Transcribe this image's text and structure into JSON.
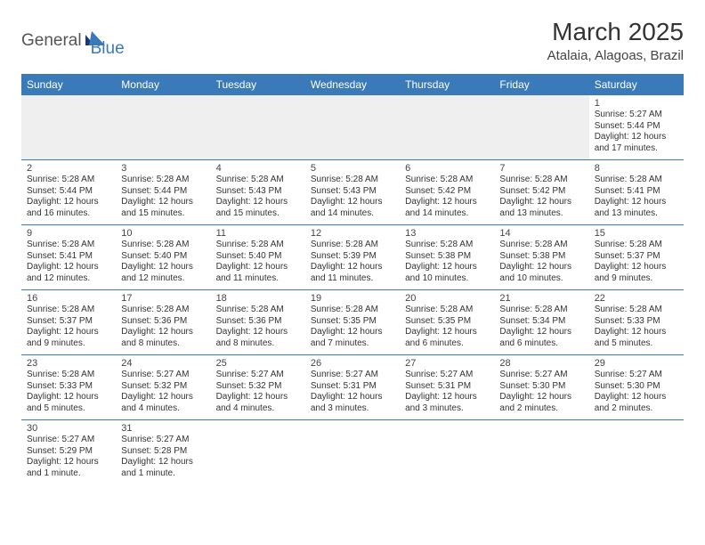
{
  "logo": {
    "text1": "General",
    "text2": "Blue"
  },
  "title": "March 2025",
  "location": "Atalaia, Alagoas, Brazil",
  "day_headers": [
    "Sunday",
    "Monday",
    "Tuesday",
    "Wednesday",
    "Thursday",
    "Friday",
    "Saturday"
  ],
  "colors": {
    "header_bg": "#3a7ab8",
    "header_fg": "#ffffff",
    "border": "#3a7ab8",
    "blank_bg": "#efefef",
    "logo_gray": "#555555",
    "logo_blue": "#3a7ab8"
  },
  "weeks": [
    [
      null,
      null,
      null,
      null,
      null,
      null,
      {
        "n": "1",
        "sr": "Sunrise: 5:27 AM",
        "ss": "Sunset: 5:44 PM",
        "dl": "Daylight: 12 hours and 17 minutes."
      }
    ],
    [
      {
        "n": "2",
        "sr": "Sunrise: 5:28 AM",
        "ss": "Sunset: 5:44 PM",
        "dl": "Daylight: 12 hours and 16 minutes."
      },
      {
        "n": "3",
        "sr": "Sunrise: 5:28 AM",
        "ss": "Sunset: 5:44 PM",
        "dl": "Daylight: 12 hours and 15 minutes."
      },
      {
        "n": "4",
        "sr": "Sunrise: 5:28 AM",
        "ss": "Sunset: 5:43 PM",
        "dl": "Daylight: 12 hours and 15 minutes."
      },
      {
        "n": "5",
        "sr": "Sunrise: 5:28 AM",
        "ss": "Sunset: 5:43 PM",
        "dl": "Daylight: 12 hours and 14 minutes."
      },
      {
        "n": "6",
        "sr": "Sunrise: 5:28 AM",
        "ss": "Sunset: 5:42 PM",
        "dl": "Daylight: 12 hours and 14 minutes."
      },
      {
        "n": "7",
        "sr": "Sunrise: 5:28 AM",
        "ss": "Sunset: 5:42 PM",
        "dl": "Daylight: 12 hours and 13 minutes."
      },
      {
        "n": "8",
        "sr": "Sunrise: 5:28 AM",
        "ss": "Sunset: 5:41 PM",
        "dl": "Daylight: 12 hours and 13 minutes."
      }
    ],
    [
      {
        "n": "9",
        "sr": "Sunrise: 5:28 AM",
        "ss": "Sunset: 5:41 PM",
        "dl": "Daylight: 12 hours and 12 minutes."
      },
      {
        "n": "10",
        "sr": "Sunrise: 5:28 AM",
        "ss": "Sunset: 5:40 PM",
        "dl": "Daylight: 12 hours and 12 minutes."
      },
      {
        "n": "11",
        "sr": "Sunrise: 5:28 AM",
        "ss": "Sunset: 5:40 PM",
        "dl": "Daylight: 12 hours and 11 minutes."
      },
      {
        "n": "12",
        "sr": "Sunrise: 5:28 AM",
        "ss": "Sunset: 5:39 PM",
        "dl": "Daylight: 12 hours and 11 minutes."
      },
      {
        "n": "13",
        "sr": "Sunrise: 5:28 AM",
        "ss": "Sunset: 5:38 PM",
        "dl": "Daylight: 12 hours and 10 minutes."
      },
      {
        "n": "14",
        "sr": "Sunrise: 5:28 AM",
        "ss": "Sunset: 5:38 PM",
        "dl": "Daylight: 12 hours and 10 minutes."
      },
      {
        "n": "15",
        "sr": "Sunrise: 5:28 AM",
        "ss": "Sunset: 5:37 PM",
        "dl": "Daylight: 12 hours and 9 minutes."
      }
    ],
    [
      {
        "n": "16",
        "sr": "Sunrise: 5:28 AM",
        "ss": "Sunset: 5:37 PM",
        "dl": "Daylight: 12 hours and 9 minutes."
      },
      {
        "n": "17",
        "sr": "Sunrise: 5:28 AM",
        "ss": "Sunset: 5:36 PM",
        "dl": "Daylight: 12 hours and 8 minutes."
      },
      {
        "n": "18",
        "sr": "Sunrise: 5:28 AM",
        "ss": "Sunset: 5:36 PM",
        "dl": "Daylight: 12 hours and 8 minutes."
      },
      {
        "n": "19",
        "sr": "Sunrise: 5:28 AM",
        "ss": "Sunset: 5:35 PM",
        "dl": "Daylight: 12 hours and 7 minutes."
      },
      {
        "n": "20",
        "sr": "Sunrise: 5:28 AM",
        "ss": "Sunset: 5:35 PM",
        "dl": "Daylight: 12 hours and 6 minutes."
      },
      {
        "n": "21",
        "sr": "Sunrise: 5:28 AM",
        "ss": "Sunset: 5:34 PM",
        "dl": "Daylight: 12 hours and 6 minutes."
      },
      {
        "n": "22",
        "sr": "Sunrise: 5:28 AM",
        "ss": "Sunset: 5:33 PM",
        "dl": "Daylight: 12 hours and 5 minutes."
      }
    ],
    [
      {
        "n": "23",
        "sr": "Sunrise: 5:28 AM",
        "ss": "Sunset: 5:33 PM",
        "dl": "Daylight: 12 hours and 5 minutes."
      },
      {
        "n": "24",
        "sr": "Sunrise: 5:27 AM",
        "ss": "Sunset: 5:32 PM",
        "dl": "Daylight: 12 hours and 4 minutes."
      },
      {
        "n": "25",
        "sr": "Sunrise: 5:27 AM",
        "ss": "Sunset: 5:32 PM",
        "dl": "Daylight: 12 hours and 4 minutes."
      },
      {
        "n": "26",
        "sr": "Sunrise: 5:27 AM",
        "ss": "Sunset: 5:31 PM",
        "dl": "Daylight: 12 hours and 3 minutes."
      },
      {
        "n": "27",
        "sr": "Sunrise: 5:27 AM",
        "ss": "Sunset: 5:31 PM",
        "dl": "Daylight: 12 hours and 3 minutes."
      },
      {
        "n": "28",
        "sr": "Sunrise: 5:27 AM",
        "ss": "Sunset: 5:30 PM",
        "dl": "Daylight: 12 hours and 2 minutes."
      },
      {
        "n": "29",
        "sr": "Sunrise: 5:27 AM",
        "ss": "Sunset: 5:30 PM",
        "dl": "Daylight: 12 hours and 2 minutes."
      }
    ],
    [
      {
        "n": "30",
        "sr": "Sunrise: 5:27 AM",
        "ss": "Sunset: 5:29 PM",
        "dl": "Daylight: 12 hours and 1 minute."
      },
      {
        "n": "31",
        "sr": "Sunrise: 5:27 AM",
        "ss": "Sunset: 5:28 PM",
        "dl": "Daylight: 12 hours and 1 minute."
      },
      null,
      null,
      null,
      null,
      null
    ]
  ]
}
